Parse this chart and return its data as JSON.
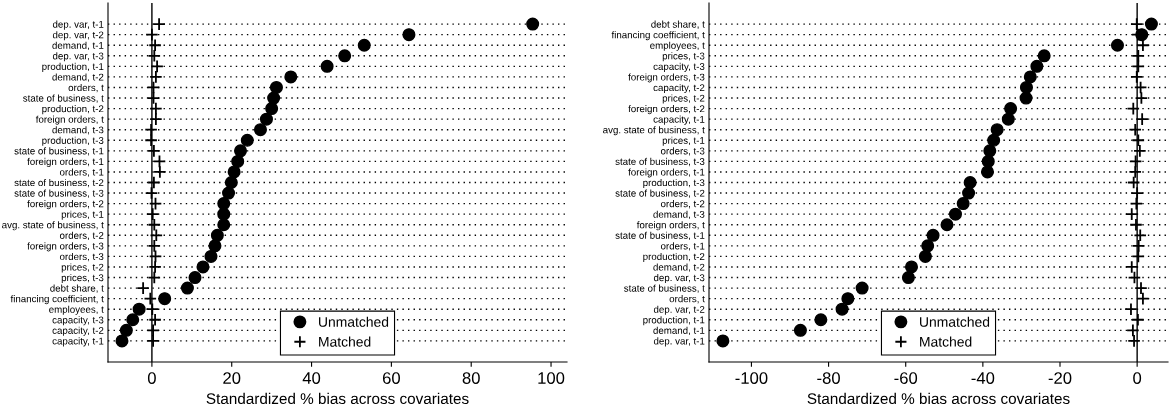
{
  "chart_data": [
    {
      "type": "scatter",
      "orientation": "horizontal",
      "xlabel": "Standardized % bias across covariates",
      "xlim": [
        -11,
        104
      ],
      "xticks": [
        0,
        20,
        40,
        60,
        80,
        100
      ],
      "grid": "y",
      "line_style": "dotted",
      "legend": "bottom",
      "ref_lines": [
        {
          "axis": "x",
          "value": 0,
          "color": "#000000",
          "line_style": "solid"
        }
      ],
      "categories": [
        "dep. var, t-1",
        "dep. var, t-2",
        "demand, t-1",
        "dep. var, t-3",
        "production, t-1",
        "demand, t-2",
        "orders, t",
        "state of business, t",
        "production, t-2",
        "foreign orders, t",
        "demand, t-3",
        "production, t-3",
        "state of business, t-1",
        "foreign orders, t-1",
        "orders, t-1",
        "state of business, t-2",
        "state of business, t-3",
        "foreign orders, t-2",
        "prices, t-1",
        "avg. state of business, t",
        "orders, t-2",
        "foreign orders, t-3",
        "orders, t-3",
        "prices, t-2",
        "prices, t-3",
        "debt share, t",
        "financing coefficient, t",
        "employees, t",
        "capacity, t-3",
        "capacity, t-2",
        "capacity, t-1"
      ],
      "series": [
        {
          "name": "Unmatched",
          "color": "#000000",
          "marker": "circle",
          "values": [
            95.4,
            64.4,
            53.2,
            48.3,
            43.9,
            34.8,
            31.2,
            30.5,
            30.0,
            28.7,
            27.2,
            23.9,
            22.2,
            21.5,
            20.6,
            19.9,
            19.2,
            18.0,
            18.0,
            18.0,
            16.4,
            15.8,
            14.8,
            12.8,
            10.8,
            8.9,
            3.2,
            -3.2,
            -4.8,
            -6.4,
            -7.5
          ]
        },
        {
          "name": "Matched",
          "color": "#000000",
          "marker": "cross",
          "values": [
            1.8,
            0,
            0.8,
            0.6,
            1.3,
            1.0,
            0.4,
            0.4,
            1.0,
            1.0,
            -0.2,
            -0.2,
            0.5,
            1.9,
            2.0,
            0.5,
            -0.1,
            0.9,
            0.2,
            0.6,
            1.1,
            0.6,
            0.9,
            0.8,
            0.6,
            -2.2,
            -0.4,
            0.1,
            0.8,
            0.3,
            0.3
          ]
        }
      ]
    },
    {
      "type": "scatter",
      "orientation": "horizontal",
      "xlabel": "Standardized % bias across covariates",
      "xlim": [
        -111,
        8
      ],
      "xticks": [
        {
          "value": -100,
          "label": "-100"
        },
        {
          "value": -80,
          "label": "-80"
        },
        {
          "value": -60,
          "label": "-60"
        },
        {
          "value": -40,
          "label": "-40"
        },
        {
          "value": -20,
          "label": "-20"
        },
        0
      ],
      "grid": "y",
      "line_style": "dotted",
      "legend": "bottom",
      "ref_lines": [
        {
          "axis": "x",
          "value": 0,
          "color": "#000000",
          "line_style": "solid"
        }
      ],
      "categories": [
        "debt share, t",
        "financing coefficient, t",
        "employees, t",
        "prices, t-3",
        "capacity, t-3",
        "foreign orders, t-3",
        "capacity, t-2",
        "prices, t-2",
        "foreign orders, t-2",
        "capacity, t-1",
        "avg. state of business, t",
        "prices, t-1",
        "orders, t-3",
        "state of business, t-3",
        "foreign orders, t-1",
        "production, t-3",
        "state of business, t-2",
        "orders, t-2",
        "demand, t-3",
        "foreign orders, t",
        "state of business, t-1",
        "orders, t-1",
        "production, t-2",
        "demand, t-2",
        "dep. var, t-3",
        "state of business, t",
        "orders, t",
        "dep. var, t-2",
        "production, t-1",
        "demand, t-1",
        "dep. var, t-1"
      ],
      "series": [
        {
          "name": "Unmatched",
          "color": "#000000",
          "marker": "circle",
          "values": [
            3.7,
            1.2,
            -5.1,
            -24.1,
            -26.0,
            -27.7,
            -28.7,
            -28.8,
            -32.8,
            -33.4,
            -36.3,
            -37.2,
            -38.2,
            -38.6,
            -38.8,
            -43.3,
            -43.7,
            -45.1,
            -47.1,
            -49.3,
            -52.9,
            -54.3,
            -54.9,
            -58.5,
            -59.3,
            -71.3,
            -75.0,
            -76.5,
            -82.0,
            -87.3,
            -107.4
          ]
        },
        {
          "name": "Matched",
          "color": "#000000",
          "marker": "cross",
          "values": [
            -0.1,
            0.2,
            1.5,
            0.3,
            0.3,
            -0.1,
            0.9,
            1.1,
            -1.0,
            1.3,
            -0.5,
            0.3,
            0.7,
            -0.4,
            -0.5,
            -0.9,
            0,
            -0.2,
            -1.4,
            -0.3,
            0.8,
            0.4,
            0.3,
            -1.4,
            -0.7,
            1.0,
            1.5,
            -1.6,
            0.2,
            -1.1,
            -0.8
          ]
        }
      ]
    }
  ]
}
